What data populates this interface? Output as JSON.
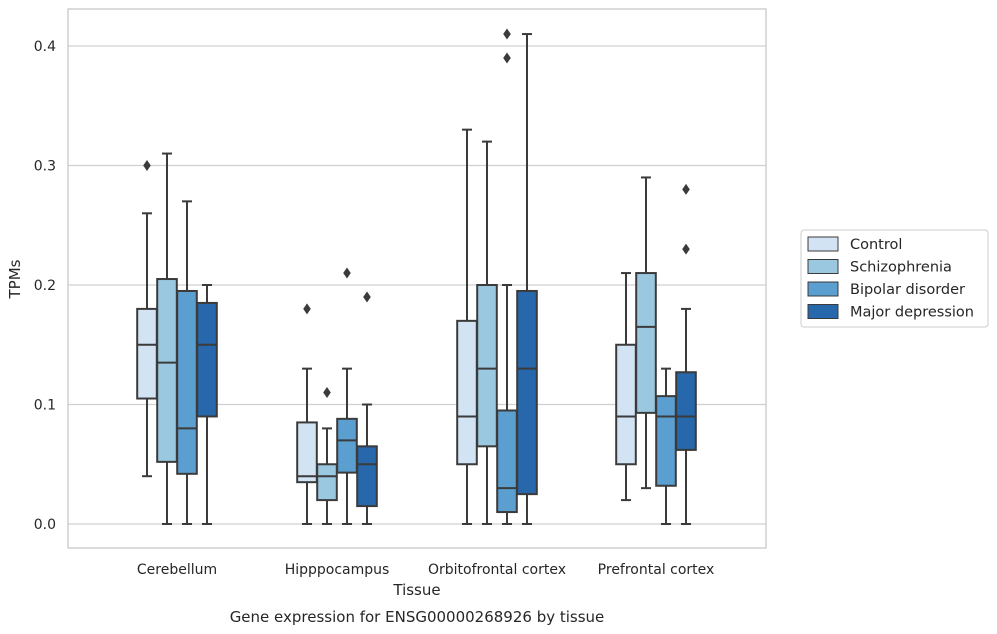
{
  "chart_data": {
    "type": "box",
    "title": "",
    "xlabel": "Tissue",
    "ylabel": "TPMs",
    "caption": "Gene expression for ENSG00000268926 by tissue",
    "ylim": [
      -0.02,
      0.43
    ],
    "yticks": [
      0.0,
      0.1,
      0.2,
      0.3,
      0.4
    ],
    "ytick_labels": [
      "0.0",
      "0.1",
      "0.2",
      "0.3",
      "0.4"
    ],
    "grid": "horizontal",
    "legend_position": "right, outside plot",
    "categories": [
      "Cerebellum",
      "Hipppocampus",
      "Orbitofrontal cortex",
      "Prefrontal cortex"
    ],
    "series": [
      {
        "name": "Control",
        "color": "#d2e3f3",
        "boxes": [
          {
            "whislo": 0.04,
            "q1": 0.105,
            "med": 0.15,
            "q3": 0.18,
            "whishi": 0.26,
            "fliers": [
              0.3
            ]
          },
          {
            "whislo": 0.0,
            "q1": 0.035,
            "med": 0.04,
            "q3": 0.085,
            "whishi": 0.13,
            "fliers": [
              0.18
            ]
          },
          {
            "whislo": 0.0,
            "q1": 0.05,
            "med": 0.09,
            "q3": 0.17,
            "whishi": 0.33,
            "fliers": []
          },
          {
            "whislo": 0.02,
            "q1": 0.05,
            "med": 0.09,
            "q3": 0.15,
            "whishi": 0.21,
            "fliers": []
          }
        ]
      },
      {
        "name": "Schizophrenia",
        "color": "#9ac8e0",
        "boxes": [
          {
            "whislo": 0.0,
            "q1": 0.052,
            "med": 0.135,
            "q3": 0.205,
            "whishi": 0.31,
            "fliers": []
          },
          {
            "whislo": 0.0,
            "q1": 0.02,
            "med": 0.04,
            "q3": 0.05,
            "whishi": 0.08,
            "fliers": [
              0.11
            ]
          },
          {
            "whislo": 0.0,
            "q1": 0.065,
            "med": 0.13,
            "q3": 0.2,
            "whishi": 0.32,
            "fliers": []
          },
          {
            "whislo": 0.03,
            "q1": 0.093,
            "med": 0.165,
            "q3": 0.21,
            "whishi": 0.29,
            "fliers": []
          }
        ]
      },
      {
        "name": "Bipolar disorder",
        "color": "#5a9fcf",
        "boxes": [
          {
            "whislo": 0.0,
            "q1": 0.042,
            "med": 0.08,
            "q3": 0.195,
            "whishi": 0.27,
            "fliers": []
          },
          {
            "whislo": 0.0,
            "q1": 0.043,
            "med": 0.07,
            "q3": 0.088,
            "whishi": 0.13,
            "fliers": [
              0.21
            ]
          },
          {
            "whislo": 0.0,
            "q1": 0.01,
            "med": 0.03,
            "q3": 0.095,
            "whishi": 0.2,
            "fliers": [
              0.39,
              0.41
            ]
          },
          {
            "whislo": 0.0,
            "q1": 0.032,
            "med": 0.09,
            "q3": 0.107,
            "whishi": 0.13,
            "fliers": []
          }
        ]
      },
      {
        "name": "Major depression",
        "color": "#2767ab",
        "boxes": [
          {
            "whislo": 0.0,
            "q1": 0.09,
            "med": 0.15,
            "q3": 0.185,
            "whishi": 0.2,
            "fliers": []
          },
          {
            "whislo": 0.0,
            "q1": 0.015,
            "med": 0.05,
            "q3": 0.065,
            "whishi": 0.1,
            "fliers": [
              0.19
            ]
          },
          {
            "whislo": 0.0,
            "q1": 0.025,
            "med": 0.13,
            "q3": 0.195,
            "whishi": 0.41,
            "fliers": []
          },
          {
            "whislo": 0.0,
            "q1": 0.062,
            "med": 0.09,
            "q3": 0.127,
            "whishi": 0.18,
            "fliers": [
              0.23,
              0.28
            ]
          }
        ]
      }
    ],
    "colors": {
      "grid": "#d0d0d0",
      "frame": "#c8c8c8",
      "edge": "#3b3b3b",
      "background": "#ffffff"
    }
  }
}
